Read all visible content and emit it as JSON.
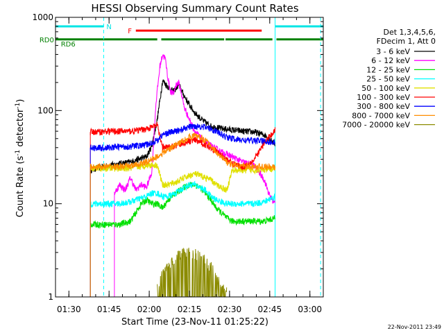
{
  "chart_data": {
    "type": "line",
    "title": "HESSI Observing Summary Count Rates",
    "xlabel": "Start Time (23-Nov-11 01:25:22)",
    "ylabel_main": "Count Rate (s",
    "ylabel_exp1": "-1",
    "ylabel_mid": " detector",
    "ylabel_exp2": "-1",
    "ylabel_end": ")",
    "x_unit": "minutes since 01:25",
    "xlim": [
      0,
      100
    ],
    "ylim": [
      1,
      1000
    ],
    "yscale": "log",
    "x_ticks": [
      {
        "value": 5,
        "label": "01:30"
      },
      {
        "value": 20,
        "label": "01:45"
      },
      {
        "value": 35,
        "label": "02:00"
      },
      {
        "value": 50,
        "label": "02:15"
      },
      {
        "value": 65,
        "label": "02:30"
      },
      {
        "value": 80,
        "label": "02:45"
      },
      {
        "value": 95,
        "label": "03:00"
      }
    ],
    "y_ticks": [
      {
        "value": 1,
        "label": "1"
      },
      {
        "value": 10,
        "label": "10"
      },
      {
        "value": 100,
        "label": "100"
      },
      {
        "value": 1000,
        "label": "1000"
      }
    ],
    "legend_header": [
      "Det 1,3,4,5,6,",
      "FDecim 1, Att 0"
    ],
    "legend_position": "right",
    "timestamp": "22-Nov-2011 23:49",
    "vlines": [
      {
        "x": 0,
        "color": "#00ffff",
        "dash": false
      },
      {
        "x": 18,
        "color": "#00ffff",
        "dash": true
      },
      {
        "x": 82,
        "color": "#00ffff",
        "dash": false
      },
      {
        "x": 99,
        "color": "#00ffff",
        "dash": true
      }
    ],
    "status_bars": [
      {
        "label": "N",
        "color": "#00e5e5",
        "y": 800,
        "segments": [
          [
            0,
            18
          ],
          [
            82,
            100
          ]
        ],
        "label_x": 19
      },
      {
        "label": "F",
        "color": "#ff0000",
        "y": 720,
        "segments": [
          [
            30,
            77
          ]
        ],
        "label_x": 27
      },
      {
        "label": "RD0",
        "color": "#008000",
        "y": 580,
        "segments": [
          [
            0,
            38
          ],
          [
            39.5,
            63
          ],
          [
            63.5,
            81
          ],
          [
            82.5,
            100
          ]
        ],
        "label_x": -6
      },
      {
        "label": "RD6",
        "color": "#008000",
        "y": 520,
        "segments": [],
        "label_x": 2
      }
    ],
    "series": [
      {
        "name": "3 - 6 keV",
        "color": "#000000",
        "x": [
          13,
          15,
          18,
          21,
          24,
          28,
          31,
          34,
          36,
          38,
          40,
          42,
          44,
          46,
          48,
          50,
          52,
          55,
          58,
          62,
          66,
          70,
          74,
          78,
          82
        ],
        "values": [
          23,
          24,
          25,
          26,
          27,
          28,
          30,
          32,
          42,
          80,
          210,
          180,
          160,
          190,
          145,
          115,
          95,
          78,
          68,
          64,
          62,
          60,
          59,
          55,
          44
        ]
      },
      {
        "name": "6 - 12 keV",
        "color": "#ff00ff",
        "x": [
          22,
          24,
          26,
          28,
          30,
          32,
          34,
          36,
          37.5,
          39,
          40,
          41,
          42,
          43,
          44,
          45,
          46,
          47,
          48,
          50,
          52,
          55,
          58,
          62,
          66,
          70,
          74,
          76,
          78,
          80,
          82
        ],
        "values": [
          13,
          16,
          14,
          19,
          14,
          16,
          15,
          22,
          120,
          300,
          400,
          360,
          220,
          160,
          150,
          190,
          200,
          155,
          110,
          80,
          60,
          48,
          42,
          36,
          32,
          28,
          26,
          22,
          18,
          12,
          10
        ]
      },
      {
        "name": "12 - 25 keV",
        "color": "#00e000",
        "x": [
          13,
          16,
          20,
          24,
          28,
          30,
          32,
          34,
          36,
          38,
          40,
          42,
          45,
          48,
          50,
          52,
          54,
          56,
          58,
          60,
          62,
          64,
          66,
          70,
          74,
          78,
          82
        ],
        "values": [
          6,
          6,
          6,
          6,
          6.5,
          8,
          10,
          11,
          10,
          10,
          9,
          11,
          13,
          15,
          16,
          16,
          15,
          13,
          11,
          9,
          8,
          7,
          6.5,
          6.5,
          6.5,
          6.5,
          7
        ]
      },
      {
        "name": "25 - 50 keV",
        "color": "#00ffff",
        "x": [
          13,
          16,
          20,
          24,
          28,
          30,
          32,
          34,
          36,
          38,
          40,
          42,
          45,
          48,
          50,
          52,
          54,
          56,
          58,
          60,
          62,
          64,
          66,
          70,
          74,
          78,
          82
        ],
        "values": [
          10,
          10,
          10,
          10,
          10.5,
          11,
          11.5,
          12,
          13,
          13,
          12,
          12,
          13,
          15,
          16,
          16,
          15,
          14,
          12,
          11,
          10.5,
          10,
          10,
          10,
          10,
          10.5,
          12
        ]
      },
      {
        "name": "50 - 100 keV",
        "color": "#e0e000",
        "x": [
          13,
          16,
          20,
          24,
          28,
          30,
          32,
          34,
          36,
          38,
          40,
          42,
          45,
          48,
          50,
          52,
          54,
          56,
          58,
          60,
          62,
          64,
          66,
          70,
          74,
          78,
          82
        ],
        "values": [
          24,
          24,
          24,
          24,
          24,
          25,
          25,
          26,
          26,
          26,
          16,
          16,
          17,
          19,
          20,
          21,
          20,
          19,
          18,
          16,
          15,
          14,
          23,
          23,
          23,
          23,
          24
        ]
      },
      {
        "name": "100 - 300 keV",
        "color": "#ff0000",
        "x": [
          13,
          16,
          20,
          24,
          28,
          30,
          32,
          34,
          36,
          38,
          40,
          42,
          45,
          48,
          50,
          52,
          54,
          56,
          58,
          60,
          62,
          64,
          66,
          70,
          74,
          78,
          82
        ],
        "values": [
          59,
          59,
          60,
          60,
          60,
          61,
          62,
          64,
          66,
          70,
          40,
          40,
          42,
          45,
          47,
          48,
          46,
          43,
          40,
          37,
          33,
          30,
          27,
          25,
          29,
          45,
          62
        ]
      },
      {
        "name": "300 - 800 keV",
        "color": "#0000ff",
        "x": [
          13,
          16,
          20,
          24,
          28,
          30,
          32,
          34,
          36,
          38,
          40,
          42,
          45,
          48,
          50,
          52,
          54,
          56,
          58,
          60,
          62,
          64,
          66,
          70,
          74,
          78,
          82
        ],
        "values": [
          40,
          40,
          40,
          41,
          41,
          42,
          42,
          43,
          45,
          48,
          55,
          58,
          60,
          64,
          67,
          68,
          68,
          66,
          64,
          60,
          55,
          52,
          50,
          48,
          48,
          47,
          45
        ]
      },
      {
        "name": "800 - 7000 keV",
        "color": "#ff8c00",
        "x": [
          13,
          16,
          20,
          24,
          28,
          30,
          32,
          34,
          36,
          38,
          40,
          42,
          45,
          48,
          50,
          52,
          54,
          56,
          58,
          60,
          62,
          64,
          66,
          70,
          74,
          78,
          82
        ],
        "values": [
          25,
          25,
          25,
          25,
          25.5,
          26,
          27,
          28,
          30,
          32,
          35,
          38,
          43,
          48,
          52,
          54,
          52,
          48,
          42,
          36,
          31,
          28,
          26,
          25.5,
          25,
          25,
          24.5
        ]
      },
      {
        "name": "7000 - 20000 keV",
        "color": "#8b8b00",
        "x": [
          38,
          40,
          42,
          44,
          46,
          48,
          50,
          52,
          54,
          56,
          58,
          60,
          62,
          64
        ],
        "values": [
          1.2,
          1.8,
          2.3,
          2.5,
          2.8,
          2.9,
          3.0,
          2.9,
          2.7,
          2.4,
          2.1,
          1.7,
          1.4,
          1.1
        ]
      }
    ]
  }
}
